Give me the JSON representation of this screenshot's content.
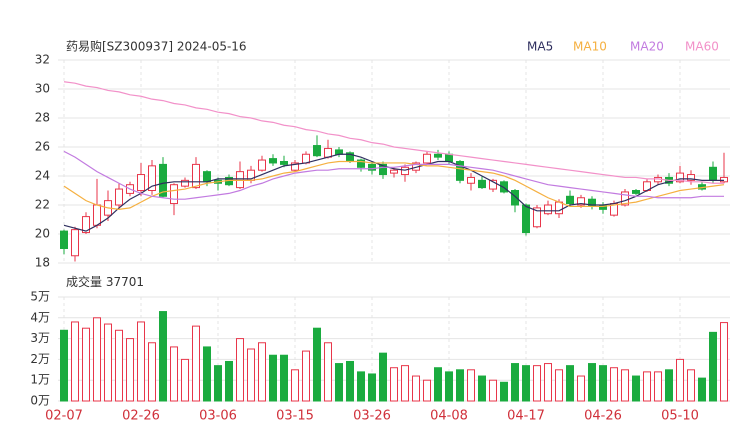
{
  "chart_data": [
    {
      "type": "candlestick",
      "title": "药易购[SZ300937] 2024-05-16",
      "categories": [
        "02-07",
        null,
        null,
        null,
        null,
        null,
        null,
        "02-26",
        null,
        null,
        null,
        null,
        null,
        null,
        "03-06",
        null,
        null,
        null,
        null,
        null,
        null,
        "03-15",
        null,
        null,
        null,
        null,
        null,
        null,
        "03-26",
        null,
        null,
        null,
        null,
        null,
        null,
        "04-08",
        null,
        null,
        null,
        null,
        null,
        null,
        "04-17",
        null,
        null,
        null,
        null,
        null,
        null,
        "04-26",
        null,
        null,
        null,
        null,
        null,
        null,
        "05-10",
        null,
        null,
        null,
        null
      ],
      "open": [
        20.2,
        18.5,
        20.1,
        20.6,
        21.3,
        22.0,
        22.8,
        23.0,
        23.0,
        24.8,
        22.1,
        23.3,
        23.2,
        24.3,
        23.7,
        23.9,
        23.2,
        23.7,
        24.4,
        25.2,
        25.0,
        24.4,
        24.9,
        26.1,
        25.3,
        25.8,
        25.6,
        25.1,
        24.8,
        24.8,
        24.2,
        24.1,
        24.4,
        24.9,
        25.5,
        25.5,
        25.0,
        23.5,
        23.7,
        23.1,
        23.6,
        23.0,
        22.0,
        20.5,
        21.4,
        21.4,
        22.6,
        22.0,
        22.4,
        22.0,
        21.3,
        22.0,
        23.0,
        23.0,
        23.6,
        23.9,
        23.6,
        23.7,
        23.4,
        24.6,
        23.6
      ],
      "high": [
        20.3,
        20.5,
        21.5,
        23.8,
        23.0,
        23.5,
        23.6,
        24.9,
        25.1,
        25.3,
        23.5,
        23.9,
        25.3,
        24.4,
        23.9,
        24.1,
        25.0,
        24.7,
        25.4,
        25.5,
        25.4,
        25.1,
        25.7,
        26.8,
        26.5,
        26.0,
        25.7,
        25.2,
        25.0,
        25.0,
        24.6,
        24.8,
        25.0,
        25.7,
        25.8,
        25.7,
        25.1,
        24.2,
        24.0,
        23.8,
        23.7,
        23.1,
        22.1,
        22.0,
        22.3,
        22.4,
        23.0,
        22.7,
        22.6,
        22.2,
        22.3,
        23.1,
        23.1,
        23.8,
        24.1,
        24.2,
        24.7,
        24.4,
        23.6,
        25.0,
        25.6
      ],
      "low": [
        18.6,
        18.1,
        20.0,
        20.4,
        20.9,
        21.7,
        22.6,
        22.6,
        22.7,
        22.5,
        21.3,
        23.2,
        23.1,
        23.3,
        23.0,
        23.3,
        23.1,
        23.5,
        24.3,
        24.7,
        24.6,
        24.3,
        24.8,
        25.3,
        25.2,
        25.3,
        24.9,
        24.3,
        24.1,
        23.8,
        23.9,
        23.6,
        24.2,
        24.8,
        25.1,
        24.8,
        23.5,
        23.0,
        23.1,
        22.9,
        22.8,
        21.5,
        19.9,
        20.4,
        21.3,
        21.1,
        21.9,
        21.8,
        21.7,
        21.4,
        21.2,
        21.9,
        22.7,
        22.9,
        23.4,
        23.3,
        23.5,
        23.4,
        23.0,
        23.5,
        23.5
      ],
      "close": [
        19.0,
        20.3,
        21.2,
        22.0,
        22.3,
        23.1,
        23.4,
        24.1,
        24.7,
        22.6,
        23.4,
        23.7,
        24.8,
        23.6,
        23.5,
        23.4,
        24.3,
        24.4,
        25.1,
        24.9,
        24.8,
        24.9,
        25.5,
        25.4,
        25.9,
        25.5,
        25.0,
        24.6,
        24.4,
        24.1,
        24.4,
        24.6,
        24.9,
        25.5,
        25.3,
        25.0,
        23.7,
        23.9,
        23.2,
        23.7,
        22.9,
        22.0,
        20.1,
        21.8,
        22.0,
        22.2,
        22.1,
        22.5,
        21.9,
        21.7,
        22.1,
        22.9,
        22.8,
        23.6,
        23.9,
        23.5,
        24.2,
        24.1,
        23.1,
        23.7,
        23.9
      ],
      "up_color": "#e8364a",
      "down_color": "#1aab3f",
      "series": [
        {
          "name": "MA5",
          "color": "#2f2f5f",
          "values": [
            20.6,
            20.4,
            20.2,
            20.6,
            21.1,
            21.8,
            22.4,
            22.8,
            23.3,
            23.5,
            23.6,
            23.6,
            23.6,
            23.6,
            23.8,
            23.8,
            23.8,
            23.8,
            24.1,
            24.4,
            24.7,
            24.8,
            24.9,
            25.1,
            25.3,
            25.5,
            25.5,
            25.3,
            25.0,
            24.7,
            24.5,
            24.4,
            24.6,
            24.8,
            25.0,
            25.0,
            24.7,
            24.4,
            24.0,
            23.6,
            23.2,
            22.6,
            21.9,
            21.6,
            21.6,
            21.6,
            22.0,
            22.1,
            22.0,
            22.0,
            22.1,
            22.3,
            22.6,
            23.0,
            23.4,
            23.6,
            23.8,
            23.8,
            23.7,
            23.7,
            23.7
          ]
        },
        {
          "name": "MA10",
          "color": "#f5b041",
          "values": [
            23.3,
            22.8,
            22.3,
            22.0,
            21.8,
            21.7,
            21.8,
            22.2,
            22.6,
            22.9,
            23.0,
            23.1,
            23.3,
            23.5,
            23.6,
            23.7,
            23.7,
            23.7,
            23.8,
            24.0,
            24.2,
            24.3,
            24.5,
            24.7,
            24.9,
            25.0,
            25.0,
            25.0,
            24.9,
            24.9,
            24.9,
            24.9,
            24.8,
            24.7,
            24.7,
            24.6,
            24.5,
            24.4,
            24.3,
            24.2,
            24.0,
            23.7,
            23.3,
            22.9,
            22.5,
            22.2,
            21.9,
            21.9,
            21.9,
            21.9,
            22.0,
            22.1,
            22.2,
            22.4,
            22.6,
            22.8,
            23.0,
            23.1,
            23.2,
            23.3,
            23.4
          ]
        },
        {
          "name": "MA20",
          "color": "#c27be0",
          "values": [
            25.7,
            25.3,
            24.8,
            24.3,
            23.9,
            23.5,
            23.1,
            22.8,
            22.6,
            22.5,
            22.4,
            22.4,
            22.5,
            22.6,
            22.7,
            22.8,
            23.0,
            23.3,
            23.5,
            23.8,
            24.0,
            24.2,
            24.3,
            24.4,
            24.4,
            24.5,
            24.5,
            24.5,
            24.5,
            24.6,
            24.6,
            24.7,
            24.8,
            24.8,
            24.8,
            24.8,
            24.7,
            24.6,
            24.5,
            24.4,
            24.2,
            24.0,
            23.8,
            23.6,
            23.4,
            23.3,
            23.2,
            23.1,
            23.0,
            22.9,
            22.8,
            22.7,
            22.6,
            22.6,
            22.5,
            22.5,
            22.5,
            22.5,
            22.6,
            22.6,
            22.6
          ]
        },
        {
          "name": "MA60",
          "color": "#f291c9",
          "values": [
            30.5,
            30.4,
            30.2,
            30.1,
            29.9,
            29.8,
            29.6,
            29.5,
            29.3,
            29.2,
            29.0,
            28.9,
            28.7,
            28.6,
            28.4,
            28.3,
            28.1,
            28.0,
            27.8,
            27.7,
            27.5,
            27.4,
            27.2,
            27.1,
            26.9,
            26.8,
            26.6,
            26.5,
            26.3,
            26.2,
            26.0,
            25.9,
            25.8,
            25.7,
            25.6,
            25.5,
            25.4,
            25.3,
            25.2,
            25.1,
            25.0,
            24.9,
            24.8,
            24.7,
            24.6,
            24.5,
            24.4,
            24.3,
            24.2,
            24.1,
            24.0,
            23.9,
            23.9,
            23.8,
            23.8,
            23.7,
            23.7,
            23.6,
            23.6,
            23.5,
            23.5
          ]
        }
      ],
      "ylim": [
        18,
        32
      ],
      "yticks": [
        18,
        20,
        22,
        24,
        26,
        28,
        30,
        32
      ],
      "grid": true
    },
    {
      "type": "bar",
      "title": "成交量",
      "values": [
        34000,
        38000,
        35000,
        40000,
        37000,
        34000,
        30000,
        38000,
        28000,
        43000,
        26000,
        20000,
        36000,
        26000,
        17000,
        19000,
        30000,
        25000,
        28000,
        22000,
        22000,
        15000,
        24000,
        35000,
        28000,
        18000,
        19000,
        14000,
        13000,
        23000,
        16000,
        17000,
        12000,
        10000,
        16000,
        14000,
        15000,
        15000,
        12000,
        10000,
        9000,
        18000,
        17000,
        17000,
        18000,
        15000,
        17000,
        12000,
        18000,
        17000,
        16000,
        15000,
        12000,
        14000,
        14000,
        15000,
        20000,
        15000,
        11000,
        33000,
        37701
      ],
      "ylim": [
        0,
        50000
      ],
      "yticks": [
        {
          "value": 0,
          "label": "0万"
        },
        {
          "value": 10000,
          "label": "1万"
        },
        {
          "value": 20000,
          "label": "2万"
        },
        {
          "value": 30000,
          "label": "3万"
        },
        {
          "value": 40000,
          "label": "4万"
        },
        {
          "value": 50000,
          "label": "5万"
        }
      ],
      "grid": true
    }
  ]
}
